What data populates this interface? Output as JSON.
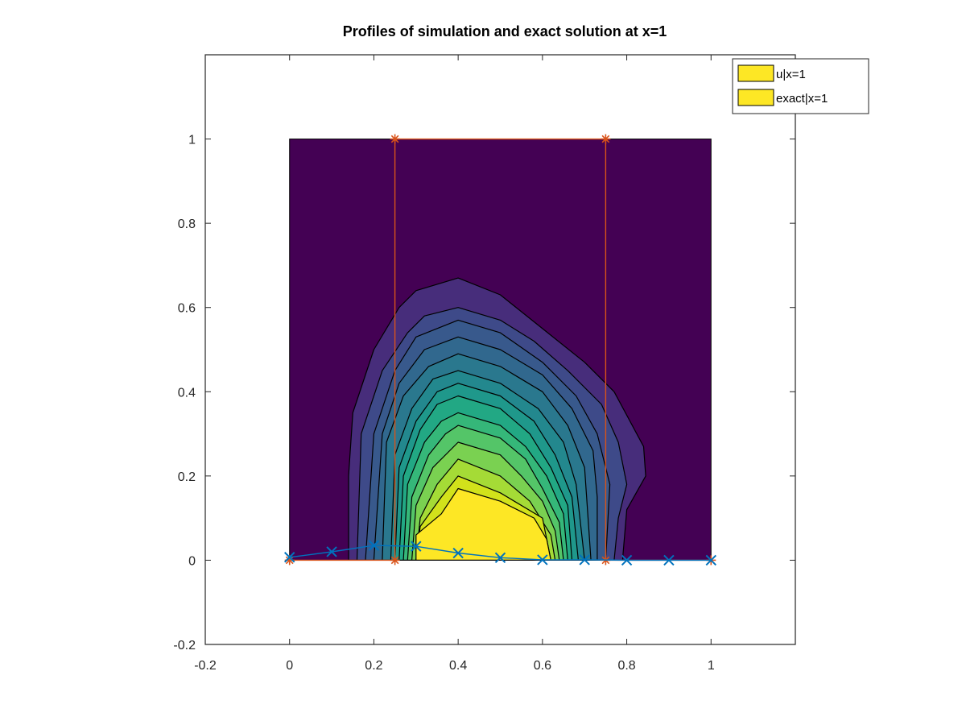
{
  "chart_data": {
    "type": "contour",
    "title": "Profiles of simulation and exact solution at x=1",
    "xlim": [
      -0.2,
      1.2
    ],
    "ylim": [
      -0.2,
      1.2
    ],
    "xticks": [
      -0.2,
      0,
      0.2,
      0.4,
      0.6,
      0.8,
      1
    ],
    "yticks": [
      -0.2,
      0,
      0.2,
      0.4,
      0.6,
      0.8,
      1
    ],
    "grid": false,
    "legend_position": "top-right",
    "legend": [
      "u|x=1",
      "exact|x=1"
    ],
    "contour": {
      "domain": {
        "x": [
          0,
          1
        ],
        "y": [
          0,
          1
        ]
      },
      "background_color": "#440154",
      "levels": [
        {
          "color": "#472d7b",
          "points": [
            [
              0.14,
              0
            ],
            [
              0.14,
              0.2
            ],
            [
              0.15,
              0.35
            ],
            [
              0.2,
              0.5
            ],
            [
              0.26,
              0.6
            ],
            [
              0.3,
              0.64
            ],
            [
              0.4,
              0.67
            ],
            [
              0.5,
              0.63
            ],
            [
              0.6,
              0.55
            ],
            [
              0.7,
              0.47
            ],
            [
              0.77,
              0.4
            ],
            [
              0.84,
              0.27
            ],
            [
              0.845,
              0.2
            ],
            [
              0.8,
              0.12
            ],
            [
              0.79,
              0
            ]
          ]
        },
        {
          "color": "#3e4a89",
          "points": [
            [
              0.16,
              0
            ],
            [
              0.17,
              0.3
            ],
            [
              0.22,
              0.45
            ],
            [
              0.28,
              0.54
            ],
            [
              0.32,
              0.58
            ],
            [
              0.4,
              0.6
            ],
            [
              0.5,
              0.57
            ],
            [
              0.58,
              0.52
            ],
            [
              0.66,
              0.45
            ],
            [
              0.74,
              0.37
            ],
            [
              0.78,
              0.28
            ],
            [
              0.8,
              0.18
            ],
            [
              0.78,
              0.1
            ],
            [
              0.77,
              0
            ]
          ]
        },
        {
          "color": "#38598c",
          "points": [
            [
              0.18,
              0
            ],
            [
              0.2,
              0.3
            ],
            [
              0.25,
              0.45
            ],
            [
              0.3,
              0.53
            ],
            [
              0.4,
              0.57
            ],
            [
              0.5,
              0.54
            ],
            [
              0.6,
              0.47
            ],
            [
              0.68,
              0.39
            ],
            [
              0.73,
              0.3
            ],
            [
              0.76,
              0.18
            ],
            [
              0.75,
              0
            ]
          ]
        },
        {
          "color": "#31688e",
          "points": [
            [
              0.2,
              0
            ],
            [
              0.22,
              0.3
            ],
            [
              0.26,
              0.42
            ],
            [
              0.32,
              0.5
            ],
            [
              0.4,
              0.53
            ],
            [
              0.5,
              0.5
            ],
            [
              0.6,
              0.44
            ],
            [
              0.67,
              0.36
            ],
            [
              0.72,
              0.26
            ],
            [
              0.73,
              0.15
            ],
            [
              0.73,
              0
            ]
          ]
        },
        {
          "color": "#2a788e",
          "points": [
            [
              0.22,
              0
            ],
            [
              0.23,
              0.28
            ],
            [
              0.27,
              0.39
            ],
            [
              0.33,
              0.46
            ],
            [
              0.4,
              0.49
            ],
            [
              0.5,
              0.46
            ],
            [
              0.6,
              0.4
            ],
            [
              0.66,
              0.32
            ],
            [
              0.7,
              0.22
            ],
            [
              0.715,
              0
            ]
          ]
        },
        {
          "color": "#23888e",
          "points": [
            [
              0.24,
              0
            ],
            [
              0.25,
              0.25
            ],
            [
              0.29,
              0.36
            ],
            [
              0.34,
              0.43
            ],
            [
              0.4,
              0.45
            ],
            [
              0.5,
              0.42
            ],
            [
              0.59,
              0.36
            ],
            [
              0.65,
              0.28
            ],
            [
              0.68,
              0.18
            ],
            [
              0.7,
              0
            ]
          ]
        },
        {
          "color": "#1f988b",
          "points": [
            [
              0.25,
              0
            ],
            [
              0.26,
              0.22
            ],
            [
              0.3,
              0.33
            ],
            [
              0.35,
              0.4
            ],
            [
              0.4,
              0.42
            ],
            [
              0.5,
              0.39
            ],
            [
              0.58,
              0.33
            ],
            [
              0.63,
              0.25
            ],
            [
              0.67,
              0.15
            ],
            [
              0.685,
              0
            ]
          ]
        },
        {
          "color": "#22a884",
          "points": [
            [
              0.26,
              0
            ],
            [
              0.27,
              0.2
            ],
            [
              0.31,
              0.31
            ],
            [
              0.35,
              0.37
            ],
            [
              0.4,
              0.39
            ],
            [
              0.5,
              0.36
            ],
            [
              0.57,
              0.3
            ],
            [
              0.62,
              0.22
            ],
            [
              0.66,
              0.13
            ],
            [
              0.67,
              0
            ]
          ]
        },
        {
          "color": "#35b779",
          "points": [
            [
              0.27,
              0
            ],
            [
              0.28,
              0.18
            ],
            [
              0.32,
              0.28
            ],
            [
              0.36,
              0.33
            ],
            [
              0.4,
              0.35
            ],
            [
              0.5,
              0.32
            ],
            [
              0.56,
              0.27
            ],
            [
              0.61,
              0.2
            ],
            [
              0.65,
              0.11
            ],
            [
              0.66,
              0
            ]
          ]
        },
        {
          "color": "#54c568",
          "points": [
            [
              0.28,
              0
            ],
            [
              0.29,
              0.15
            ],
            [
              0.33,
              0.25
            ],
            [
              0.37,
              0.3
            ],
            [
              0.4,
              0.32
            ],
            [
              0.5,
              0.29
            ],
            [
              0.56,
              0.24
            ],
            [
              0.6,
              0.17
            ],
            [
              0.64,
              0.09
            ],
            [
              0.65,
              0
            ]
          ]
        },
        {
          "color": "#7ad151",
          "points": [
            [
              0.29,
              0
            ],
            [
              0.3,
              0.13
            ],
            [
              0.34,
              0.22
            ],
            [
              0.4,
              0.28
            ],
            [
              0.5,
              0.25
            ],
            [
              0.55,
              0.2
            ],
            [
              0.6,
              0.14
            ],
            [
              0.63,
              0.07
            ],
            [
              0.64,
              0
            ]
          ]
        },
        {
          "color": "#a5db36",
          "points": [
            [
              0.3,
              0
            ],
            [
              0.31,
              0.1
            ],
            [
              0.35,
              0.18
            ],
            [
              0.4,
              0.24
            ],
            [
              0.5,
              0.2
            ],
            [
              0.57,
              0.14
            ],
            [
              0.62,
              0.06
            ],
            [
              0.63,
              0
            ]
          ]
        },
        {
          "color": "#d2e21b",
          "points": [
            [
              0.3,
              0
            ],
            [
              0.31,
              0.08
            ],
            [
              0.36,
              0.15
            ],
            [
              0.4,
              0.2
            ],
            [
              0.5,
              0.16
            ],
            [
              0.6,
              0.1
            ],
            [
              0.62,
              0
            ]
          ]
        },
        {
          "color": "#fde725",
          "points": [
            [
              0.3,
              0
            ],
            [
              0.3,
              0.06
            ],
            [
              0.36,
              0.11
            ],
            [
              0.4,
              0.17
            ],
            [
              0.5,
              0.14
            ],
            [
              0.58,
              0.1
            ],
            [
              0.61,
              0.05
            ],
            [
              0.62,
              0
            ]
          ]
        }
      ]
    },
    "series": [
      {
        "name": "u|x=1",
        "color": "#0072bd",
        "marker": "x",
        "x": [
          0,
          0.1,
          0.2,
          0.3,
          0.4,
          0.5,
          0.6,
          0.7,
          0.8,
          0.9,
          1
        ],
        "y": [
          0.007,
          0.02,
          0.035,
          0.033,
          0.017,
          0.006,
          0.001,
          0.001,
          0,
          0,
          0
        ]
      },
      {
        "name": "exact|x=1",
        "color": "#d95319",
        "marker": "*",
        "x": [
          0,
          0.25,
          0.25,
          0.75,
          0.75,
          1
        ],
        "y": [
          0,
          0,
          1,
          1,
          0,
          0
        ]
      }
    ]
  }
}
